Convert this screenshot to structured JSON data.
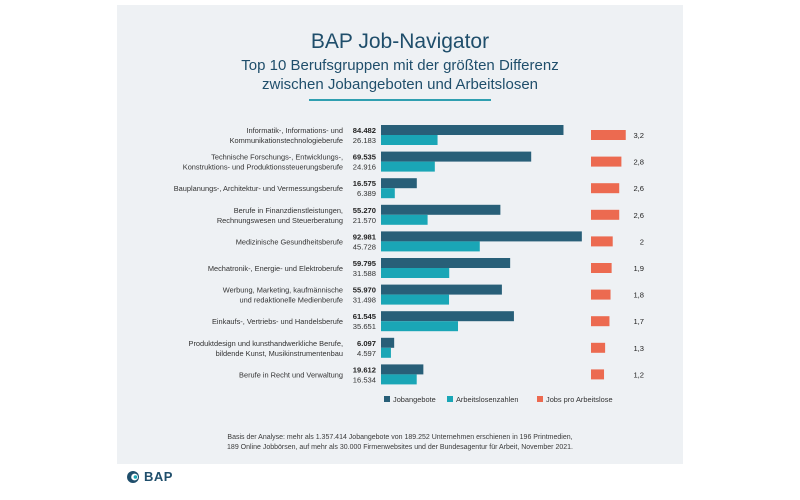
{
  "footnote": {
    "line1": "Basis der Analyse: mehr als 1.357.414 Jobangebote von 189.252 Unternehmen erschienen in 196 Printmedien,",
    "line2": "189 Online Jobbörsen, auf mehr als 30.000 Firmenwebsites und der Bundesagentur für Arbeit, November 2021."
  },
  "brand": {
    "logo_text": "BAP"
  },
  "colors": {
    "jobs": "#285f78",
    "unemployed": "#1aa6b6",
    "ratio": "#ec6a50",
    "title": "#1f4e6b"
  },
  "chart_data": {
    "type": "bar",
    "title": "BAP Job-Navigator",
    "subtitle": [
      "Top 10 Berufsgruppen mit der größten Differenz",
      "zwischen Jobangeboten und Arbeitslosen"
    ],
    "categories": [
      [
        "Informatik-, Informations- und",
        "Kommunikationstechnologieberufe"
      ],
      [
        "Technische Forschungs-, Entwicklungs-,",
        "Konstruktions- und Produktionssteuerungsberufe"
      ],
      [
        "Bauplanungs-, Architektur- und Vermessungsberufe"
      ],
      [
        "Berufe in Finanzdienstleistungen,",
        "Rechnungswesen und Steuerberatung"
      ],
      [
        "Medizinische Gesundheitsberufe"
      ],
      [
        "Mechatronik-, Energie- und Elektroberufe"
      ],
      [
        "Werbung, Marketing, kaufmännische",
        "und redaktionelle Medienberufe"
      ],
      [
        "Einkaufs-, Vertriebs- und Handelsberufe"
      ],
      [
        "Produktdesign und kunsthandwerkliche Berufe,",
        "bildende Kunst, Musikinstrumentenbau"
      ],
      [
        "Berufe in Recht und Verwaltung"
      ]
    ],
    "series": [
      {
        "name": "Jobangebote",
        "values": [
          84482,
          69535,
          16575,
          55270,
          92981,
          59795,
          55970,
          61545,
          6097,
          19612
        ],
        "labels": [
          "84.482",
          "69.535",
          "16.575",
          "55.270",
          "92.981",
          "59.795",
          "55.970",
          "61.545",
          "6.097",
          "19.612"
        ]
      },
      {
        "name": "Arbeitslosenzahlen",
        "values": [
          26183,
          24916,
          6389,
          21570,
          45728,
          31588,
          31498,
          35651,
          4597,
          16534
        ],
        "labels": [
          "26.183",
          "24.916",
          "6.389",
          "21.570",
          "45.728",
          "31.588",
          "31.498",
          "35.651",
          "4.597",
          "16.534"
        ]
      },
      {
        "name": "Jobs pro Arbeitslose",
        "values": [
          3.2,
          2.8,
          2.6,
          2.6,
          2,
          1.9,
          1.8,
          1.7,
          1.3,
          1.2
        ],
        "labels": [
          "3,2",
          "2,8",
          "2,6",
          "2,6",
          "2",
          "1,9",
          "1,8",
          "1,7",
          "1,3",
          "1,2"
        ]
      }
    ],
    "xlim_counts": [
      0,
      100000
    ],
    "xlim_ratio": [
      0,
      3.5
    ],
    "legend": "bottom"
  }
}
